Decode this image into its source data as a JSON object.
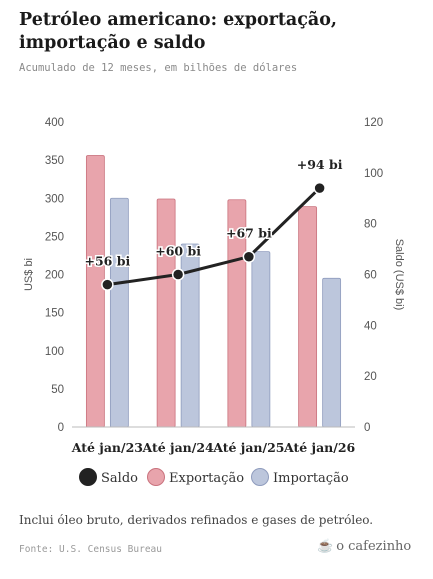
{
  "header": {
    "title": "Petróleo americano: exportação, importação e saldo",
    "subtitle": "Acumulado de 12 meses, em bilhões de dólares"
  },
  "footer": {
    "note": "Inclui óleo bruto, derivados refinados e gases de petróleo.",
    "source": "Fonte: U.S. Census Bureau",
    "brand": "o cafezinho",
    "brand_icon": "coffee-cup-icon"
  },
  "chart_data": {
    "type": "bar",
    "categories": [
      "Até jan/23",
      "Até jan/24",
      "Até jan/25",
      "Até jan/26"
    ],
    "series": [
      {
        "name": "Exportação",
        "kind": "bar",
        "axis": "left",
        "color": "#e8a4ac",
        "values": [
          356,
          299,
          298,
          289
        ]
      },
      {
        "name": "Importação",
        "kind": "bar",
        "axis": "left",
        "color": "#bcc6dc",
        "values": [
          300,
          240,
          230,
          195
        ]
      },
      {
        "name": "Saldo",
        "kind": "line",
        "axis": "right",
        "color": "#222222",
        "values": [
          56,
          60,
          67,
          94
        ],
        "labels": [
          "+56 bi",
          "+60 bi",
          "+67 bi",
          "+94 bi"
        ]
      }
    ],
    "ylabel_left": "US$ bi",
    "ylabel_right": "Saldo (US$ bi)",
    "ylim_left": [
      0,
      400
    ],
    "yticks_left": [
      0,
      50,
      100,
      150,
      200,
      250,
      300,
      350,
      400
    ],
    "ylim_right": [
      0,
      120
    ],
    "yticks_right": [
      0,
      20,
      40,
      60,
      80,
      100,
      120
    ],
    "legend": [
      "Saldo",
      "Exportação",
      "Importação"
    ],
    "legend_position": "bottom",
    "grid": false
  }
}
